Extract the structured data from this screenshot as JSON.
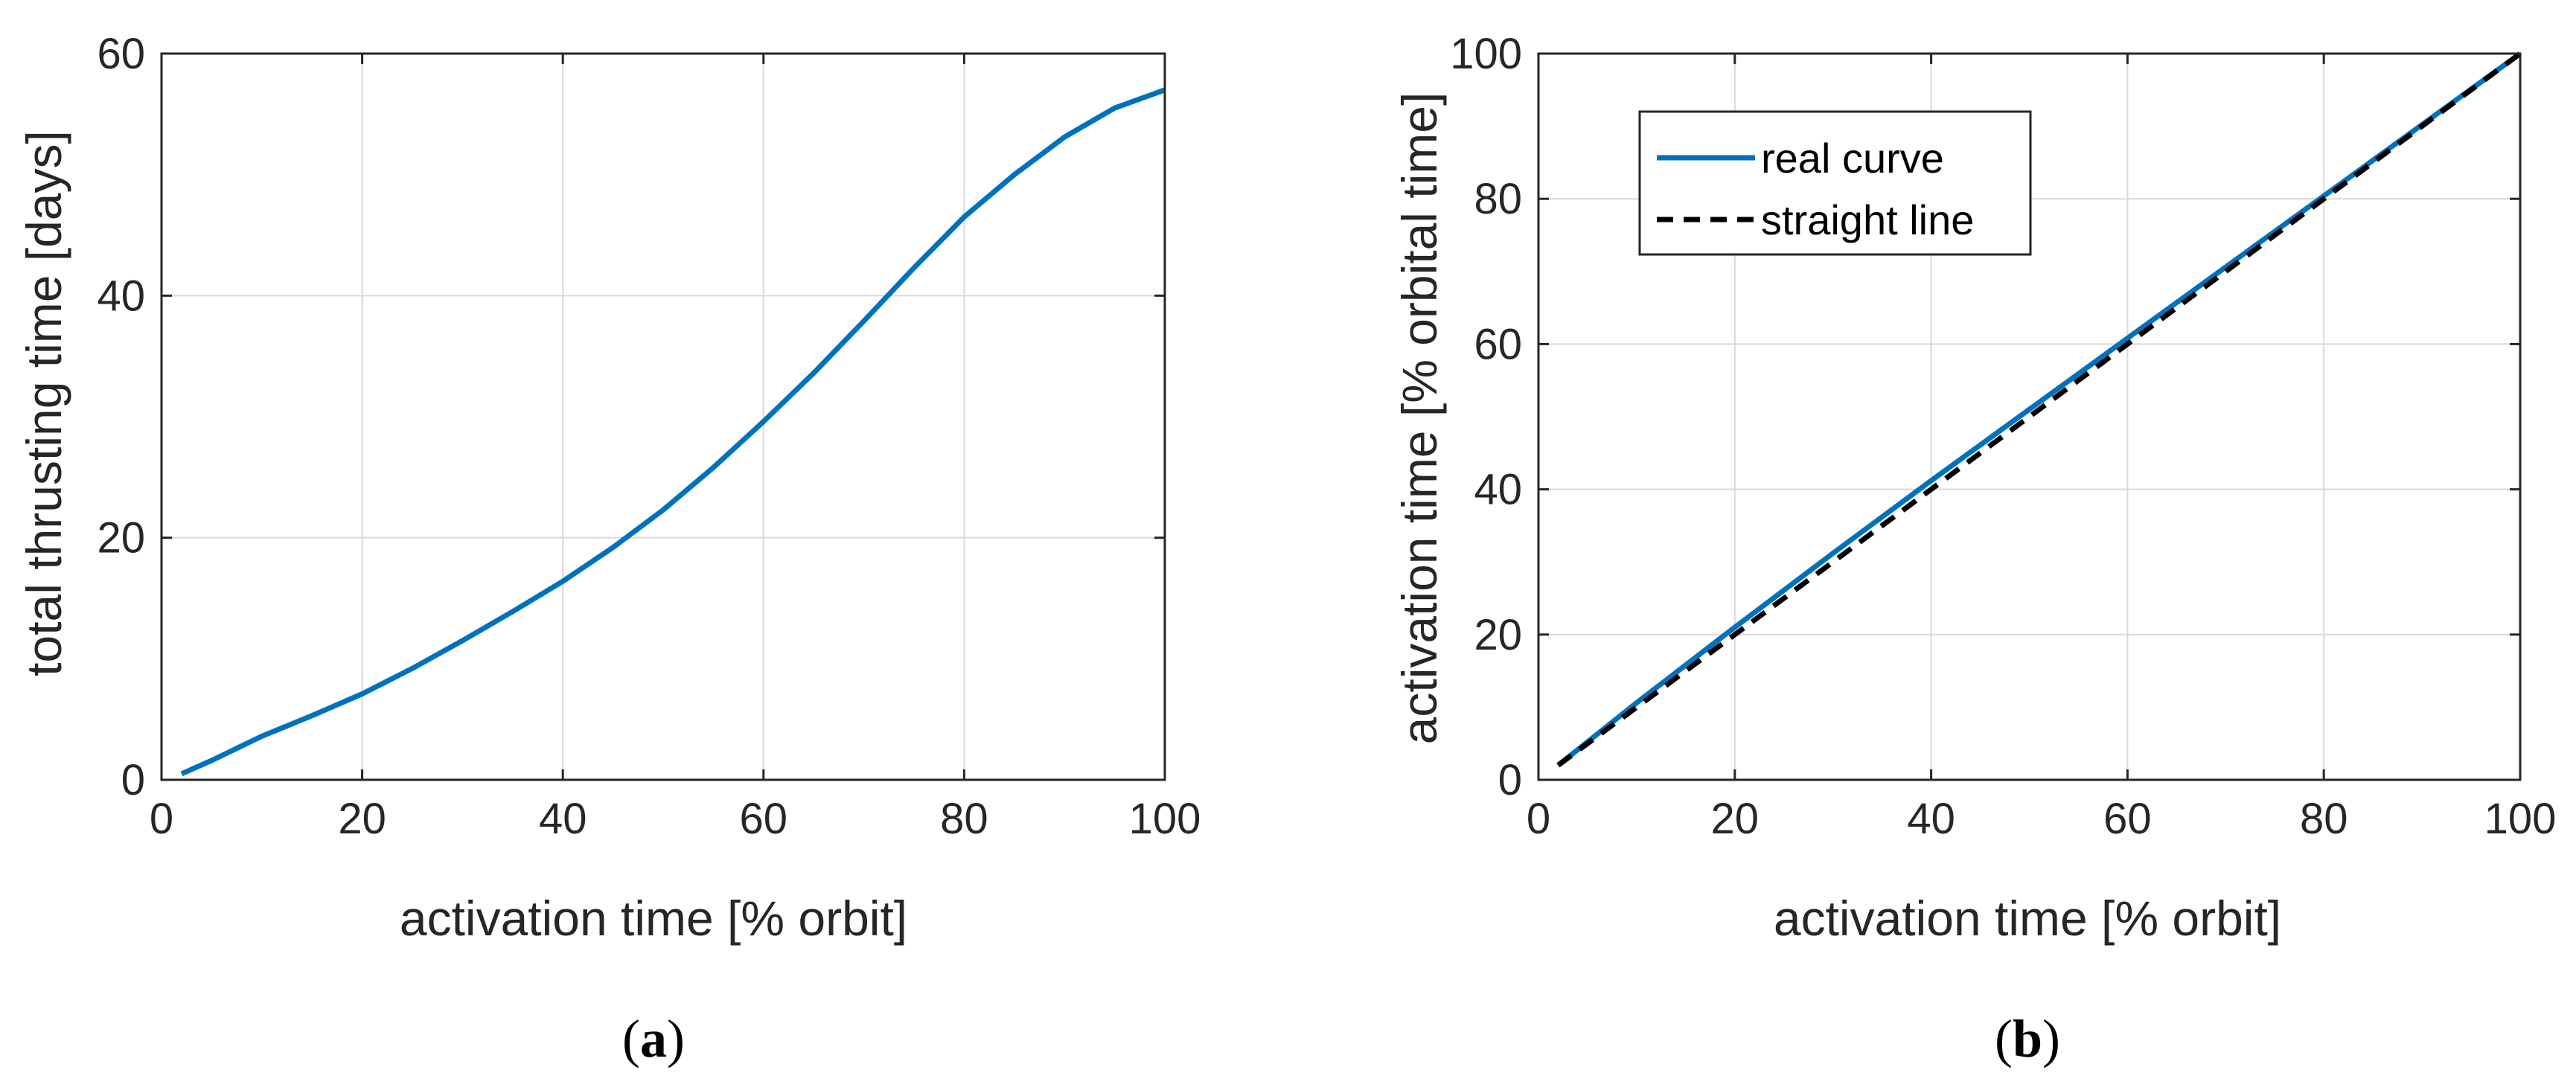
{
  "colors": {
    "series_blue": "#0072BD",
    "dashed_black": "#000000",
    "axis": "#262626",
    "grid": "#d9d9d9",
    "legend_border": "#262626"
  },
  "chart_data": [
    {
      "type": "line",
      "panel_label": "a",
      "xlabel": "activation time [% orbit]",
      "ylabel": "total thrusting time [days]",
      "xlim": [
        0,
        100
      ],
      "ylim": [
        0,
        60
      ],
      "xticks": [
        0,
        20,
        40,
        60,
        80,
        100
      ],
      "yticks": [
        0,
        20,
        40,
        60
      ],
      "grid": true,
      "series": [
        {
          "color": "#0072BD",
          "style": "solid",
          "x": [
            2,
            5,
            10,
            15,
            20,
            25,
            30,
            35,
            40,
            45,
            50,
            55,
            60,
            65,
            70,
            75,
            80,
            85,
            90,
            95,
            100
          ],
          "y": [
            0.5,
            1.6,
            3.6,
            5.3,
            7.1,
            9.2,
            11.5,
            13.9,
            16.4,
            19.2,
            22.3,
            25.8,
            29.6,
            33.6,
            37.9,
            42.3,
            46.5,
            50.0,
            53.1,
            55.5,
            57.0
          ]
        }
      ]
    },
    {
      "type": "line",
      "panel_label": "b",
      "xlabel": "activation time [% orbit]",
      "ylabel": "activation time [% orbital time]",
      "xlim": [
        0,
        100
      ],
      "ylim": [
        0,
        100
      ],
      "xticks": [
        0,
        20,
        40,
        60,
        80,
        100
      ],
      "yticks": [
        0,
        20,
        40,
        60,
        80,
        100
      ],
      "grid": true,
      "legend_position": "top-left",
      "series": [
        {
          "name": "real curve",
          "color": "#0072BD",
          "style": "solid",
          "x": [
            2,
            10,
            20,
            30,
            40,
            50,
            60,
            70,
            80,
            90,
            100
          ],
          "y": [
            2.0,
            10.6,
            21.0,
            31.2,
            41.2,
            51.0,
            60.8,
            70.6,
            80.4,
            90.2,
            100
          ]
        },
        {
          "name": "straight line",
          "color": "#000000",
          "style": "dashed",
          "x": [
            2,
            100
          ],
          "y": [
            2,
            100
          ]
        }
      ]
    }
  ],
  "captions": {
    "a": {
      "open": "(",
      "letter": "a",
      "close": ")"
    },
    "b": {
      "open": "(",
      "letter": "b",
      "close": ")"
    }
  }
}
